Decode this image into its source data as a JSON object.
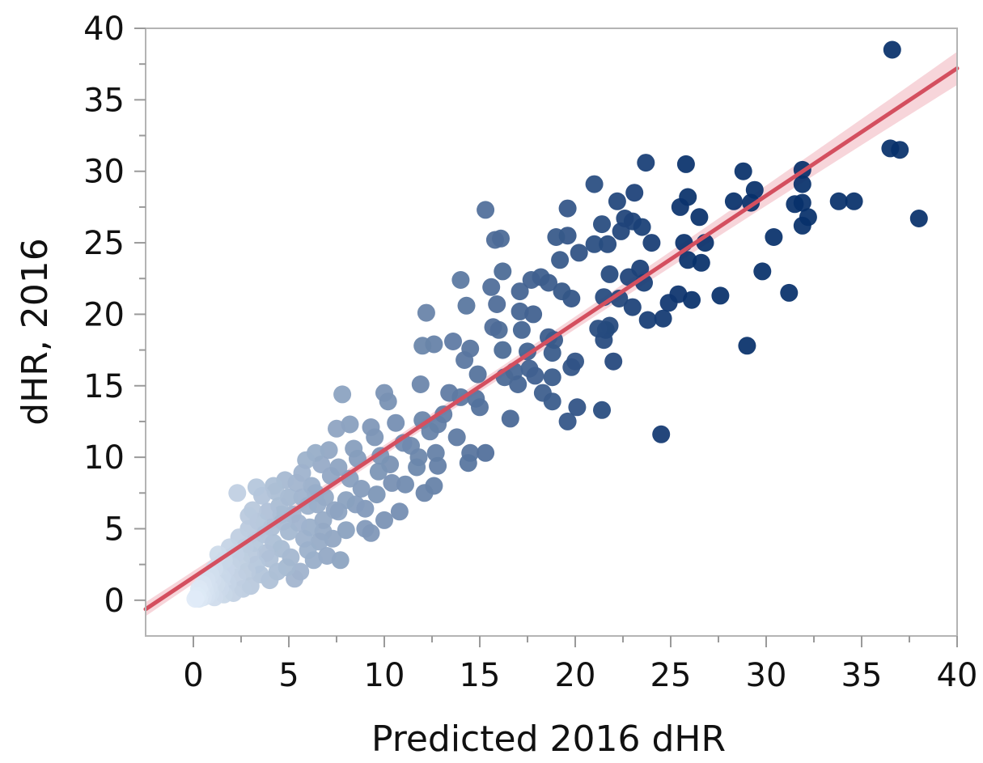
{
  "chart_data": {
    "type": "scatter",
    "title": "",
    "xlabel": "Predicted 2016 dHR",
    "ylabel": "dHR, 2016",
    "xlim": [
      -2.5,
      40
    ],
    "ylim": [
      -2.5,
      40
    ],
    "xticks": [
      "0",
      "5",
      "10",
      "15",
      "20",
      "25",
      "30",
      "35",
      "40"
    ],
    "yticks": [
      "0",
      "5",
      "10",
      "15",
      "20",
      "25",
      "30",
      "35",
      "40"
    ],
    "grid": false,
    "legend": "none",
    "point_color_scale": {
      "low": "#e3eef9",
      "high": "#08306b",
      "encodes": "predicted value"
    },
    "fit_line": {
      "slope": 0.89,
      "intercept": 1.6,
      "color": "#d44f5f",
      "band_color": "#f3c3cb"
    },
    "points": [
      [
        36.6,
        38.5
      ],
      [
        36.5,
        31.6
      ],
      [
        37.0,
        31.5
      ],
      [
        38.0,
        26.7
      ],
      [
        34.6,
        27.9
      ],
      [
        33.8,
        27.9
      ],
      [
        31.9,
        30.1
      ],
      [
        31.9,
        29.1
      ],
      [
        31.9,
        27.8
      ],
      [
        32.2,
        26.8
      ],
      [
        31.9,
        26.2
      ],
      [
        31.5,
        27.7
      ],
      [
        31.2,
        21.5
      ],
      [
        30.4,
        25.4
      ],
      [
        29.8,
        23.0
      ],
      [
        29.4,
        28.7
      ],
      [
        29.2,
        27.8
      ],
      [
        28.8,
        30.0
      ],
      [
        28.3,
        27.9
      ],
      [
        29.0,
        17.8
      ],
      [
        27.6,
        21.3
      ],
      [
        26.8,
        25.0
      ],
      [
        26.6,
        23.6
      ],
      [
        26.5,
        26.8
      ],
      [
        26.1,
        21.0
      ],
      [
        25.9,
        23.8
      ],
      [
        25.9,
        28.2
      ],
      [
        25.8,
        30.5
      ],
      [
        25.7,
        25.0
      ],
      [
        25.5,
        27.5
      ],
      [
        25.4,
        21.4
      ],
      [
        24.9,
        20.8
      ],
      [
        24.5,
        11.6
      ],
      [
        24.6,
        19.7
      ],
      [
        24.0,
        25.0
      ],
      [
        23.8,
        19.6
      ],
      [
        23.7,
        30.6
      ],
      [
        23.5,
        26.1
      ],
      [
        23.4,
        23.2
      ],
      [
        23.6,
        22.2
      ],
      [
        23.1,
        28.5
      ],
      [
        23.0,
        26.5
      ],
      [
        23.0,
        20.5
      ],
      [
        22.8,
        22.6
      ],
      [
        22.6,
        26.7
      ],
      [
        22.4,
        25.8
      ],
      [
        22.3,
        21.1
      ],
      [
        22.2,
        27.9
      ],
      [
        22.0,
        16.7
      ],
      [
        21.8,
        19.2
      ],
      [
        21.8,
        22.8
      ],
      [
        21.7,
        24.9
      ],
      [
        21.6,
        18.9
      ],
      [
        21.5,
        21.2
      ],
      [
        21.5,
        18.2
      ],
      [
        21.4,
        13.3
      ],
      [
        21.4,
        26.3
      ],
      [
        21.2,
        19.0
      ],
      [
        21.0,
        24.9
      ],
      [
        21.0,
        29.1
      ],
      [
        20.2,
        24.3
      ],
      [
        20.1,
        13.5
      ],
      [
        20.0,
        16.7
      ],
      [
        19.8,
        16.3
      ],
      [
        19.8,
        21.1
      ],
      [
        19.6,
        27.4
      ],
      [
        19.6,
        25.5
      ],
      [
        19.6,
        12.5
      ],
      [
        19.3,
        21.6
      ],
      [
        19.2,
        23.8
      ],
      [
        19.0,
        25.4
      ],
      [
        18.9,
        18.2
      ],
      [
        18.8,
        17.3
      ],
      [
        18.8,
        15.6
      ],
      [
        18.6,
        18.4
      ],
      [
        18.8,
        13.9
      ],
      [
        18.6,
        22.2
      ],
      [
        18.3,
        14.5
      ],
      [
        18.2,
        22.6
      ],
      [
        17.8,
        20.0
      ],
      [
        17.9,
        15.7
      ],
      [
        17.7,
        22.4
      ],
      [
        17.6,
        16.2
      ],
      [
        17.5,
        17.4
      ],
      [
        17.2,
        18.9
      ],
      [
        17.1,
        20.2
      ],
      [
        17.0,
        15.1
      ],
      [
        17.1,
        21.6
      ],
      [
        16.8,
        16.0
      ],
      [
        16.6,
        12.7
      ],
      [
        16.3,
        15.6
      ],
      [
        16.2,
        17.5
      ],
      [
        16.2,
        23.0
      ],
      [
        16.1,
        25.3
      ],
      [
        16.0,
        18.9
      ],
      [
        15.9,
        20.7
      ],
      [
        15.8,
        25.2
      ],
      [
        15.7,
        19.1
      ],
      [
        15.6,
        21.9
      ],
      [
        15.3,
        27.3
      ],
      [
        15.3,
        10.3
      ],
      [
        15.0,
        13.5
      ],
      [
        14.9,
        15.8
      ],
      [
        14.8,
        14.1
      ],
      [
        14.5,
        17.6
      ],
      [
        14.5,
        10.3
      ],
      [
        14.4,
        9.6
      ],
      [
        14.3,
        20.6
      ],
      [
        14.2,
        16.8
      ],
      [
        14.0,
        22.4
      ],
      [
        14.0,
        14.2
      ],
      [
        13.8,
        11.4
      ],
      [
        13.6,
        18.1
      ],
      [
        13.4,
        14.5
      ],
      [
        13.1,
        13.0
      ],
      [
        12.8,
        12.3
      ],
      [
        12.8,
        9.4
      ],
      [
        12.7,
        10.3
      ],
      [
        12.6,
        8.0
      ],
      [
        12.6,
        17.9
      ],
      [
        12.4,
        11.8
      ],
      [
        12.2,
        20.1
      ],
      [
        12.1,
        7.5
      ],
      [
        12.0,
        17.8
      ],
      [
        12.0,
        12.6
      ],
      [
        11.9,
        15.1
      ],
      [
        11.8,
        10.0
      ],
      [
        11.7,
        9.3
      ],
      [
        11.4,
        10.8
      ],
      [
        11.1,
        8.1
      ],
      [
        11.0,
        11.0
      ],
      [
        10.8,
        6.2
      ],
      [
        10.6,
        12.4
      ],
      [
        10.4,
        8.2
      ],
      [
        10.3,
        9.5
      ],
      [
        10.2,
        13.9
      ],
      [
        10.0,
        14.5
      ],
      [
        10.0,
        5.6
      ],
      [
        9.8,
        10.1
      ],
      [
        9.6,
        7.4
      ],
      [
        9.5,
        11.4
      ],
      [
        9.3,
        12.1
      ],
      [
        9.3,
        4.7
      ],
      [
        9.0,
        6.4
      ],
      [
        9.0,
        5.0
      ],
      [
        8.8,
        7.8
      ],
      [
        8.6,
        9.9
      ],
      [
        8.4,
        10.6
      ],
      [
        8.2,
        12.3
      ],
      [
        8.2,
        8.5
      ],
      [
        8.0,
        7.0
      ],
      [
        8.0,
        4.9
      ],
      [
        7.8,
        14.4
      ],
      [
        7.7,
        2.8
      ],
      [
        7.6,
        9.3
      ],
      [
        7.5,
        12.0
      ],
      [
        7.4,
        6.3
      ],
      [
        7.3,
        4.3
      ],
      [
        7.2,
        8.7
      ],
      [
        7.1,
        10.5
      ],
      [
        7.0,
        3.1
      ],
      [
        6.9,
        7.2
      ],
      [
        6.8,
        5.6
      ],
      [
        6.7,
        9.5
      ],
      [
        6.6,
        4.1
      ],
      [
        6.5,
        6.7
      ],
      [
        6.4,
        10.3
      ],
      [
        6.3,
        2.8
      ],
      [
        6.2,
        8.0
      ],
      [
        6.1,
        5.1
      ],
      [
        6.0,
        3.5
      ],
      [
        6.0,
        6.6
      ],
      [
        5.9,
        9.8
      ],
      [
        5.8,
        4.3
      ],
      [
        5.7,
        7.2
      ],
      [
        5.6,
        2.0
      ],
      [
        5.5,
        5.4
      ],
      [
        5.4,
        8.2
      ],
      [
        5.3,
        1.5
      ],
      [
        5.2,
        6.0
      ],
      [
        5.1,
        3.0
      ],
      [
        5.0,
        7.2
      ],
      [
        5.0,
        4.8
      ],
      [
        4.9,
        2.3
      ],
      [
        4.8,
        8.4
      ],
      [
        4.7,
        5.5
      ],
      [
        4.6,
        3.6
      ],
      [
        4.5,
        6.6
      ],
      [
        4.4,
        2.0
      ],
      [
        4.3,
        7.6
      ],
      [
        4.2,
        4.0
      ],
      [
        4.1,
        5.1
      ],
      [
        4.0,
        1.4
      ],
      [
        4.0,
        2.9
      ],
      [
        3.9,
        6.2
      ],
      [
        3.8,
        3.3
      ],
      [
        3.7,
        4.6
      ],
      [
        3.6,
        7.3
      ],
      [
        3.5,
        1.8
      ],
      [
        3.4,
        5.5
      ],
      [
        3.3,
        2.5
      ],
      [
        3.2,
        4.0
      ],
      [
        3.1,
        6.3
      ],
      [
        3.0,
        1.0
      ],
      [
        3.0,
        3.2
      ],
      [
        2.9,
        5.0
      ],
      [
        2.8,
        2.0
      ],
      [
        2.7,
        3.7
      ],
      [
        2.6,
        0.8
      ],
      [
        2.5,
        2.8
      ],
      [
        2.4,
        4.4
      ],
      [
        2.3,
        1.6
      ],
      [
        2.3,
        7.5
      ],
      [
        2.2,
        3.2
      ],
      [
        2.1,
        0.5
      ],
      [
        2.0,
        2.4
      ],
      [
        1.9,
        3.7
      ],
      [
        1.8,
        1.2
      ],
      [
        1.7,
        2.1
      ],
      [
        1.6,
        0.4
      ],
      [
        1.6,
        2.8
      ],
      [
        1.5,
        1.6
      ],
      [
        1.4,
        0.8
      ],
      [
        1.3,
        3.2
      ],
      [
        1.2,
        1.1
      ],
      [
        1.1,
        0.2
      ],
      [
        1.1,
        2.2
      ],
      [
        1.0,
        1.4
      ],
      [
        0.9,
        0.5
      ],
      [
        0.9,
        1.8
      ],
      [
        0.8,
        0.9
      ],
      [
        0.7,
        0.3
      ],
      [
        0.7,
        1.4
      ],
      [
        0.6,
        0.7
      ],
      [
        0.5,
        0.2
      ],
      [
        0.5,
        1.1
      ],
      [
        0.4,
        0.5
      ],
      [
        0.3,
        0.1
      ],
      [
        0.3,
        0.8
      ],
      [
        0.2,
        0.3
      ],
      [
        0.1,
        0.1
      ],
      [
        5.7,
        8.9
      ],
      [
        6.4,
        7.5
      ],
      [
        8.5,
        6.7
      ],
      [
        9.7,
        9.0
      ],
      [
        4.6,
        6.0
      ],
      [
        3.3,
        7.9
      ],
      [
        6.8,
        4.8
      ],
      [
        7.6,
        6.2
      ],
      [
        2.9,
        5.9
      ],
      [
        4.2,
        8.0
      ]
    ]
  }
}
